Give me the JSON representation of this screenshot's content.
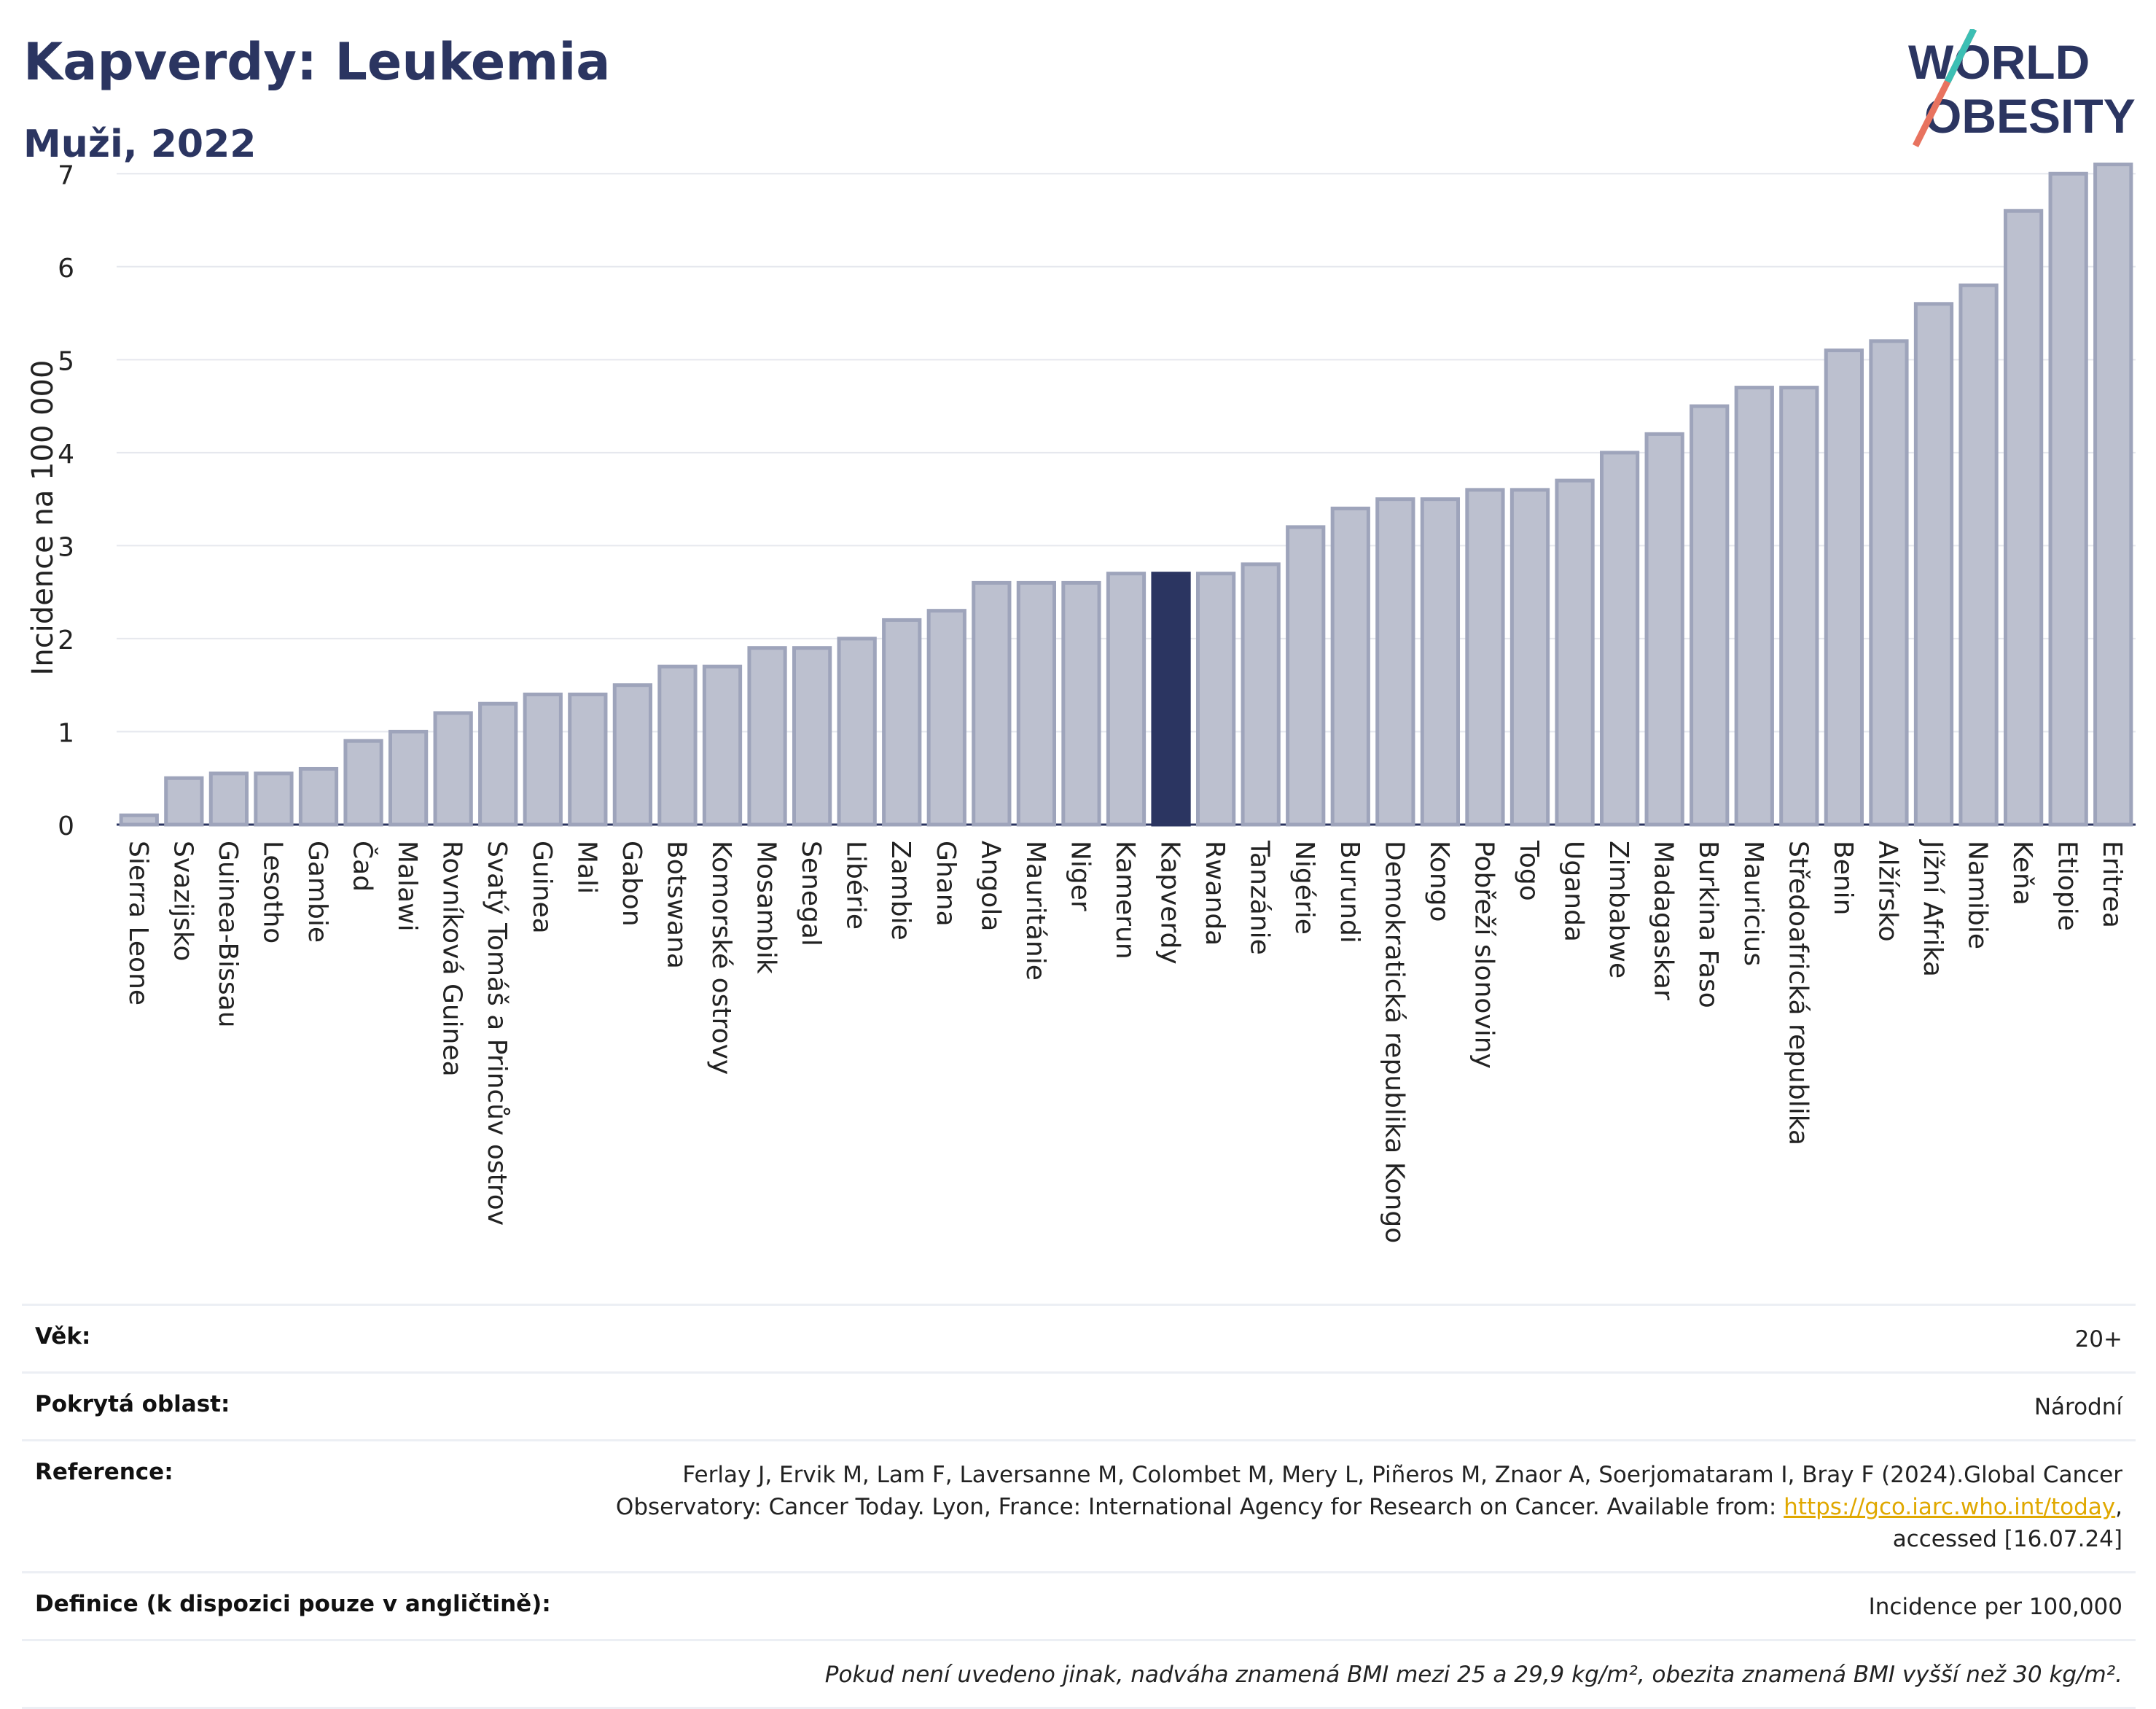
{
  "header": {
    "title": "Kapverdy: Leukemia",
    "subtitle": "Muži, 2022"
  },
  "logo": {
    "line1": "WORLD",
    "line2": "OBESITY"
  },
  "chart_data": {
    "type": "bar",
    "title": "Kapverdy: Leukemia",
    "subtitle": "Muži, 2022",
    "ylabel": "Incidence na 100 000",
    "xlabel": "",
    "ylim": [
      0,
      7.3
    ],
    "yticks": [
      0,
      1,
      2,
      3,
      4,
      5,
      6,
      7
    ],
    "grid": true,
    "highlight": "Kapverdy",
    "colors": {
      "bar": "#bcc0cf",
      "bar_edge": "#9ea4bb",
      "highlight": "#2b3561"
    },
    "categories": [
      "Sierra Leone",
      "Svazijsko",
      "Guinea-Bissau",
      "Lesotho",
      "Gambie",
      "Čad",
      "Malawi",
      "Rovníková Guinea",
      "Svatý Tomáš a Princův ostrov",
      "Guinea",
      "Mali",
      "Gabon",
      "Botswana",
      "Komorské ostrovy",
      "Mosambik",
      "Senegal",
      "Libérie",
      "Zambie",
      "Ghana",
      "Angola",
      "Mauritánie",
      "Niger",
      "Kamerun",
      "Kapverdy",
      "Rwanda",
      "Tanzánie",
      "Nigérie",
      "Burundi",
      "Demokratická republika Kongo",
      "Kongo",
      "Pobřeží slonoviny",
      "Togo",
      "Uganda",
      "Zimbabwe",
      "Madagaskar",
      "Burkina Faso",
      "Mauricius",
      "Středoafrická republika",
      "Benin",
      "Alžírsko",
      "Jížní Afrika",
      "Namibie",
      "Keňa",
      "Etiopie",
      "Eritrea"
    ],
    "values": [
      0.1,
      0.5,
      0.55,
      0.55,
      0.6,
      0.9,
      1.0,
      1.2,
      1.3,
      1.4,
      1.4,
      1.5,
      1.7,
      1.7,
      1.9,
      1.9,
      2.0,
      2.2,
      2.3,
      2.6,
      2.6,
      2.6,
      2.7,
      2.7,
      2.7,
      2.8,
      3.2,
      3.4,
      3.5,
      3.5,
      3.6,
      3.6,
      3.7,
      4.0,
      4.2,
      4.5,
      4.7,
      4.7,
      5.1,
      5.2,
      5.6,
      5.8,
      6.6,
      7.0,
      7.1
    ]
  },
  "info": {
    "age_label": "Věk:",
    "age_value": "20+",
    "coverage_label": "Pokrytá oblast:",
    "coverage_value": "Národní",
    "reference_label": "Reference:",
    "reference_text": "Ferlay J, Ervik M, Lam F, Laversanne M, Colombet M, Mery L, Piñeros M, Znaor A, Soerjomataram I, Bray F (2024).Global Cancer Observatory: Cancer Today. Lyon, France: International Agency for Research on Cancer. Available from: ",
    "reference_link": "https://gco.iarc.who.int/today",
    "reference_suffix": ", accessed [16.07.24]",
    "definition_label": "Definice (k dispozici pouze v angličtině):",
    "definition_value": "Incidence per 100,000",
    "note": "Pokud není uvedeno jinak, nadváha znamená BMI mezi 25 a 29,9 kg/m², obezita znamená BMI vyšší než 30 kg/m²."
  }
}
